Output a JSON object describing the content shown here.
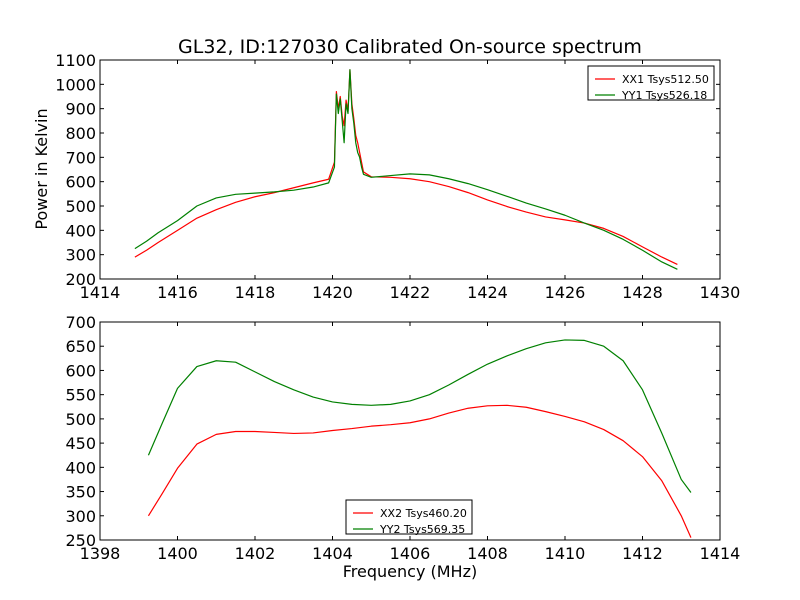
{
  "chart_data": [
    {
      "type": "line",
      "title": "GL32, ID:127030 Calibrated On-source spectrum",
      "xlabel": "",
      "ylabel": "Power in Kelvin",
      "xlim": [
        1414,
        1430
      ],
      "ylim": [
        200,
        1100
      ],
      "xticks": [
        1414,
        1416,
        1418,
        1420,
        1422,
        1424,
        1426,
        1428,
        1430
      ],
      "yticks": [
        200,
        300,
        400,
        500,
        600,
        700,
        800,
        900,
        1000,
        1100
      ],
      "legend_position": "top-right",
      "series": [
        {
          "name": "XX1 Tsys512.50",
          "color": "#ff0000",
          "points": [
            [
              1414.9,
              290
            ],
            [
              1415.2,
              318
            ],
            [
              1415.5,
              350
            ],
            [
              1416.0,
              400
            ],
            [
              1416.5,
              450
            ],
            [
              1417.0,
              485
            ],
            [
              1417.5,
              515
            ],
            [
              1418.0,
              538
            ],
            [
              1418.5,
              555
            ],
            [
              1419.0,
              575
            ],
            [
              1419.5,
              595
            ],
            [
              1419.9,
              610
            ],
            [
              1420.05,
              680
            ],
            [
              1420.1,
              970
            ],
            [
              1420.15,
              900
            ],
            [
              1420.2,
              950
            ],
            [
              1420.25,
              870
            ],
            [
              1420.3,
              830
            ],
            [
              1420.35,
              935
            ],
            [
              1420.4,
              890
            ],
            [
              1420.45,
              1060
            ],
            [
              1420.5,
              920
            ],
            [
              1420.55,
              860
            ],
            [
              1420.6,
              790
            ],
            [
              1420.65,
              760
            ],
            [
              1420.7,
              720
            ],
            [
              1420.75,
              680
            ],
            [
              1420.8,
              640
            ],
            [
              1421.0,
              620
            ],
            [
              1421.5,
              618
            ],
            [
              1422.0,
              612
            ],
            [
              1422.5,
              600
            ],
            [
              1423.0,
              580
            ],
            [
              1423.5,
              555
            ],
            [
              1424.0,
              525
            ],
            [
              1424.5,
              498
            ],
            [
              1425.0,
              475
            ],
            [
              1425.5,
              455
            ],
            [
              1426.0,
              443
            ],
            [
              1426.5,
              430
            ],
            [
              1427.0,
              408
            ],
            [
              1427.5,
              375
            ],
            [
              1428.0,
              332
            ],
            [
              1428.5,
              290
            ],
            [
              1428.9,
              260
            ]
          ]
        },
        {
          "name": "YY1 Tsys526.18",
          "color": "#008000",
          "points": [
            [
              1414.9,
              325
            ],
            [
              1415.2,
              355
            ],
            [
              1415.5,
              390
            ],
            [
              1416.0,
              440
            ],
            [
              1416.5,
              500
            ],
            [
              1417.0,
              533
            ],
            [
              1417.5,
              548
            ],
            [
              1418.0,
              553
            ],
            [
              1418.5,
              558
            ],
            [
              1419.0,
              565
            ],
            [
              1419.5,
              578
            ],
            [
              1419.9,
              595
            ],
            [
              1420.05,
              660
            ],
            [
              1420.1,
              960
            ],
            [
              1420.15,
              880
            ],
            [
              1420.2,
              940
            ],
            [
              1420.25,
              850
            ],
            [
              1420.3,
              760
            ],
            [
              1420.35,
              920
            ],
            [
              1420.4,
              880
            ],
            [
              1420.45,
              1060
            ],
            [
              1420.5,
              900
            ],
            [
              1420.55,
              840
            ],
            [
              1420.6,
              760
            ],
            [
              1420.65,
              720
            ],
            [
              1420.7,
              700
            ],
            [
              1420.75,
              660
            ],
            [
              1420.8,
              630
            ],
            [
              1421.0,
              618
            ],
            [
              1421.5,
              625
            ],
            [
              1422.0,
              632
            ],
            [
              1422.5,
              628
            ],
            [
              1423.0,
              612
            ],
            [
              1423.5,
              592
            ],
            [
              1424.0,
              567
            ],
            [
              1424.5,
              540
            ],
            [
              1425.0,
              512
            ],
            [
              1425.5,
              488
            ],
            [
              1426.0,
              462
            ],
            [
              1426.5,
              430
            ],
            [
              1427.0,
              400
            ],
            [
              1427.5,
              363
            ],
            [
              1428.0,
              318
            ],
            [
              1428.5,
              270
            ],
            [
              1428.9,
              240
            ]
          ]
        }
      ]
    },
    {
      "type": "line",
      "title": "",
      "xlabel": "Frequency (MHz)",
      "ylabel": "",
      "xlim": [
        1398,
        1414
      ],
      "ylim": [
        250,
        700
      ],
      "xticks": [
        1398,
        1400,
        1402,
        1404,
        1406,
        1408,
        1410,
        1412,
        1414
      ],
      "yticks": [
        250,
        300,
        350,
        400,
        450,
        500,
        550,
        600,
        650,
        700
      ],
      "legend_position": "bottom-center",
      "series": [
        {
          "name": "XX2 Tsys460.20",
          "color": "#ff0000",
          "points": [
            [
              1399.25,
              300
            ],
            [
              1399.6,
              345
            ],
            [
              1400.0,
              398
            ],
            [
              1400.5,
              448
            ],
            [
              1401.0,
              468
            ],
            [
              1401.5,
              474
            ],
            [
              1402.0,
              474
            ],
            [
              1402.5,
              472
            ],
            [
              1403.0,
              470
            ],
            [
              1403.5,
              471
            ],
            [
              1404.0,
              476
            ],
            [
              1404.5,
              480
            ],
            [
              1405.0,
              485
            ],
            [
              1405.5,
              488
            ],
            [
              1406.0,
              492
            ],
            [
              1406.5,
              500
            ],
            [
              1407.0,
              512
            ],
            [
              1407.5,
              522
            ],
            [
              1408.0,
              527
            ],
            [
              1408.5,
              528
            ],
            [
              1409.0,
              524
            ],
            [
              1409.5,
              515
            ],
            [
              1410.0,
              505
            ],
            [
              1410.5,
              494
            ],
            [
              1411.0,
              478
            ],
            [
              1411.5,
              455
            ],
            [
              1412.0,
              422
            ],
            [
              1412.5,
              372
            ],
            [
              1413.0,
              300
            ],
            [
              1413.25,
              255
            ]
          ]
        },
        {
          "name": "YY2 Tsys569.35",
          "color": "#008000",
          "points": [
            [
              1399.25,
              425
            ],
            [
              1399.6,
              490
            ],
            [
              1400.0,
              563
            ],
            [
              1400.5,
              608
            ],
            [
              1401.0,
              620
            ],
            [
              1401.5,
              617
            ],
            [
              1402.0,
              597
            ],
            [
              1402.5,
              577
            ],
            [
              1403.0,
              560
            ],
            [
              1403.5,
              545
            ],
            [
              1404.0,
              535
            ],
            [
              1404.5,
              530
            ],
            [
              1405.0,
              528
            ],
            [
              1405.5,
              530
            ],
            [
              1406.0,
              537
            ],
            [
              1406.5,
              550
            ],
            [
              1407.0,
              570
            ],
            [
              1407.5,
              592
            ],
            [
              1408.0,
              613
            ],
            [
              1408.5,
              630
            ],
            [
              1409.0,
              645
            ],
            [
              1409.5,
              657
            ],
            [
              1410.0,
              663
            ],
            [
              1410.5,
              662
            ],
            [
              1411.0,
              650
            ],
            [
              1411.5,
              620
            ],
            [
              1412.0,
              560
            ],
            [
              1412.5,
              470
            ],
            [
              1413.0,
              375
            ],
            [
              1413.25,
              348
            ]
          ]
        }
      ]
    }
  ]
}
